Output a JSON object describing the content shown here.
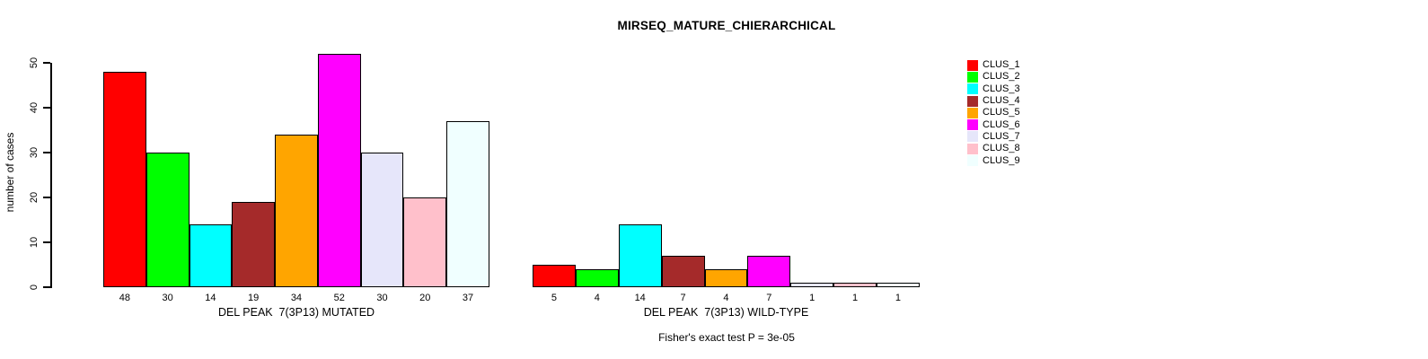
{
  "chart_data": {
    "type": "bar",
    "title": "MIRSEQ_MATURE_CHIERARCHICAL",
    "ylabel": "number of cases",
    "ylim": [
      0,
      52
    ],
    "yticks": [
      0,
      10,
      20,
      30,
      40,
      50
    ],
    "grid": false,
    "legend_position": "right",
    "legend": [
      {
        "label": "CLUS_1",
        "color": "#FF0000"
      },
      {
        "label": "CLUS_2",
        "color": "#00FF00"
      },
      {
        "label": "CLUS_3",
        "color": "#00FFFF"
      },
      {
        "label": "CLUS_4",
        "color": "#A52A2A"
      },
      {
        "label": "CLUS_5",
        "color": "#FFA500"
      },
      {
        "label": "CLUS_6",
        "color": "#FF00FF"
      },
      {
        "label": "CLUS_7",
        "color": "#E6E6FA"
      },
      {
        "label": "CLUS_8",
        "color": "#FFC0CB"
      },
      {
        "label": "CLUS_9",
        "color": "#F0FFFF"
      }
    ],
    "groups": [
      {
        "xlabel": "DEL PEAK  7(3P13) MUTATED",
        "categories": [
          "48",
          "30",
          "14",
          "19",
          "34",
          "52",
          "30",
          "20",
          "37"
        ],
        "values": [
          48,
          30,
          14,
          19,
          34,
          52,
          30,
          20,
          37
        ]
      },
      {
        "xlabel": "DEL PEAK  7(3P13) WILD-TYPE",
        "categories": [
          "5",
          "4",
          "14",
          "7",
          "4",
          "7",
          "1",
          "1",
          "1"
        ],
        "values": [
          5,
          4,
          14,
          7,
          4,
          7,
          1,
          1,
          1
        ]
      }
    ],
    "footnote": "Fisher's exact test P = 3e-05",
    "bar_border_color": "#000000",
    "axis_color": "#000000"
  }
}
